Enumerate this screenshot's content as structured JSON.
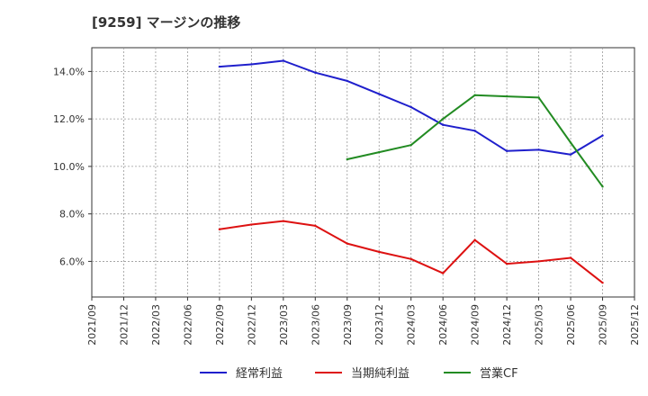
{
  "chart_data": {
    "type": "line",
    "title": "[9259]  マージンの推移",
    "xlabel": "",
    "ylabel": "",
    "ylim": [
      4.5,
      15.0
    ],
    "yticks": [
      6.0,
      8.0,
      10.0,
      12.0,
      14.0
    ],
    "ytick_labels": [
      "6.0%",
      "8.0%",
      "10.0%",
      "12.0%",
      "14.0%"
    ],
    "categories": [
      "2021/09",
      "2021/12",
      "2022/03",
      "2022/06",
      "2022/09",
      "2022/12",
      "2023/03",
      "2023/06",
      "2023/09",
      "2023/12",
      "2024/03",
      "2024/06",
      "2024/09",
      "2024/12",
      "2025/03",
      "2025/06",
      "2025/09",
      "2025/12"
    ],
    "grid": true,
    "legend_position": "bottom",
    "series": [
      {
        "name": "経常利益",
        "color": "#1f1fcc",
        "values": [
          null,
          null,
          null,
          null,
          14.2,
          14.3,
          14.45,
          13.95,
          13.6,
          13.05,
          12.5,
          11.75,
          11.5,
          10.65,
          10.7,
          10.5,
          11.3,
          null
        ]
      },
      {
        "name": "当期純利益",
        "color": "#dd1111",
        "values": [
          null,
          null,
          null,
          null,
          7.35,
          7.55,
          7.7,
          7.5,
          6.75,
          6.4,
          6.1,
          5.5,
          6.9,
          5.9,
          6.0,
          6.15,
          5.1,
          null
        ]
      },
      {
        "name": "営業CF",
        "color": "#228b22",
        "values": [
          null,
          null,
          null,
          null,
          null,
          null,
          null,
          null,
          10.3,
          10.6,
          10.9,
          12.0,
          13.0,
          12.95,
          12.9,
          11.0,
          9.15,
          null
        ]
      }
    ]
  }
}
